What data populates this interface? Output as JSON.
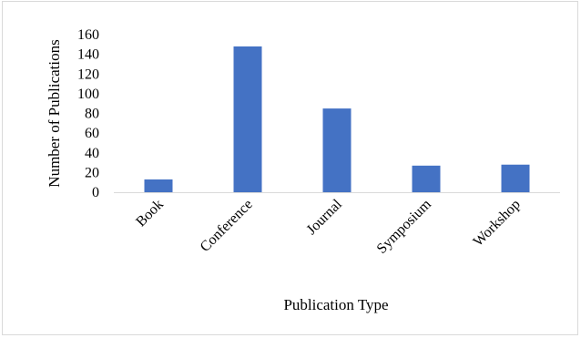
{
  "chart_data": {
    "type": "bar",
    "categories": [
      "Book",
      "Conference",
      "Journal",
      "Symposium",
      "Workshop"
    ],
    "values": [
      13,
      148,
      85,
      27,
      28
    ],
    "xlabel": "Publication Type",
    "ylabel": "Number of Publications",
    "ylim": [
      0,
      160
    ],
    "yticks": [
      0,
      20,
      40,
      60,
      80,
      100,
      120,
      140,
      160
    ],
    "grid": false,
    "legend": "none",
    "bar_color": "#4472C4"
  }
}
